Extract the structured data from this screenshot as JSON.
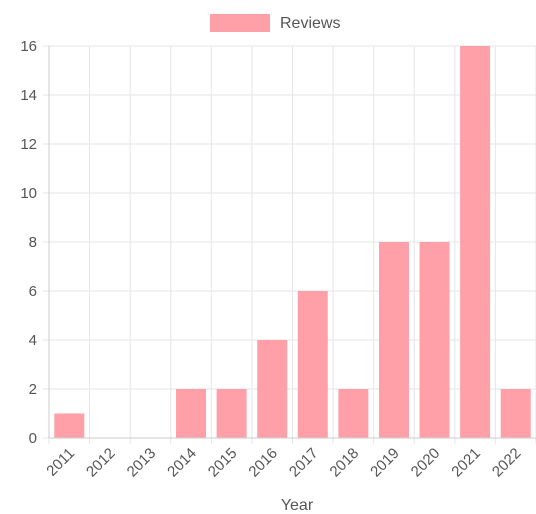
{
  "chart_data": {
    "type": "bar",
    "categories": [
      "2011",
      "2012",
      "2013",
      "2014",
      "2015",
      "2016",
      "2017",
      "2018",
      "2019",
      "2020",
      "2021",
      "2022"
    ],
    "series": [
      {
        "name": "Reviews",
        "values": [
          1,
          0,
          0,
          2,
          2,
          4,
          6,
          2,
          8,
          8,
          16,
          2
        ]
      }
    ],
    "title": "",
    "xlabel": "Year",
    "ylabel": "",
    "ylim": [
      0,
      16
    ],
    "yticks": [
      "0",
      "2",
      "4",
      "6",
      "8",
      "10",
      "12",
      "14",
      "16"
    ],
    "grid": true,
    "legend_position": "top-center",
    "colors": {
      "bar_fill": "#ff9fa8",
      "grid": "#e6e6e6",
      "axis": "#cccccc",
      "text": "#555555"
    }
  }
}
